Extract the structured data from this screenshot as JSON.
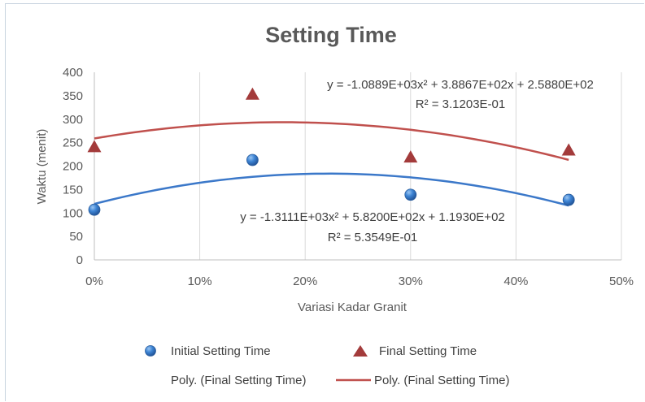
{
  "chart_data": {
    "type": "scatter",
    "title": "Setting Time",
    "xlabel": "Variasi Kadar Granit",
    "ylabel": "Waktu (menit)",
    "xlim": [
      0,
      0.5
    ],
    "ylim": [
      0,
      400
    ],
    "x_ticks": [
      0,
      0.1,
      0.2,
      0.3,
      0.4,
      0.5
    ],
    "x_tick_labels": [
      "0%",
      "10%",
      "20%",
      "30%",
      "40%",
      "50%"
    ],
    "y_ticks": [
      0,
      50,
      100,
      150,
      200,
      250,
      300,
      350,
      400
    ],
    "y_tick_labels": [
      "0",
      "50",
      "100",
      "150",
      "200",
      "250",
      "300",
      "350",
      "400"
    ],
    "grid": "vertical",
    "legend_position": "bottom",
    "series": [
      {
        "name": "Initial Setting Time",
        "marker": "circle",
        "color": "#2f6fc0",
        "x": [
          0,
          0.15,
          0.3,
          0.45
        ],
        "y": [
          107,
          213,
          139,
          128
        ]
      },
      {
        "name": "Final Setting Time",
        "marker": "triangle",
        "color": "#a33b3b",
        "x": [
          0,
          0.15,
          0.3,
          0.45
        ],
        "y": [
          240,
          352,
          218,
          233
        ]
      }
    ],
    "trendlines": [
      {
        "name": "Poly. (Final Setting Time)",
        "color": "#3b78c9",
        "coefficients": [
          -1311.1,
          582.0,
          119.3
        ],
        "x_range": [
          0,
          0.45
        ],
        "equation": "y = -1.3111E+03x² + 5.8200E+02x + 1.1930E+02",
        "r2": "R² = 5.3549E-01"
      },
      {
        "name": "Poly. (Final Setting Time)",
        "color": "#c0504d",
        "coefficients": [
          -1088.9,
          388.67,
          258.8
        ],
        "x_range": [
          0,
          0.45
        ],
        "equation": "y = -1.0889E+03x² + 3.8867E+02x + 2.5880E+02",
        "r2": "R² = 3.1203E-01"
      }
    ]
  }
}
